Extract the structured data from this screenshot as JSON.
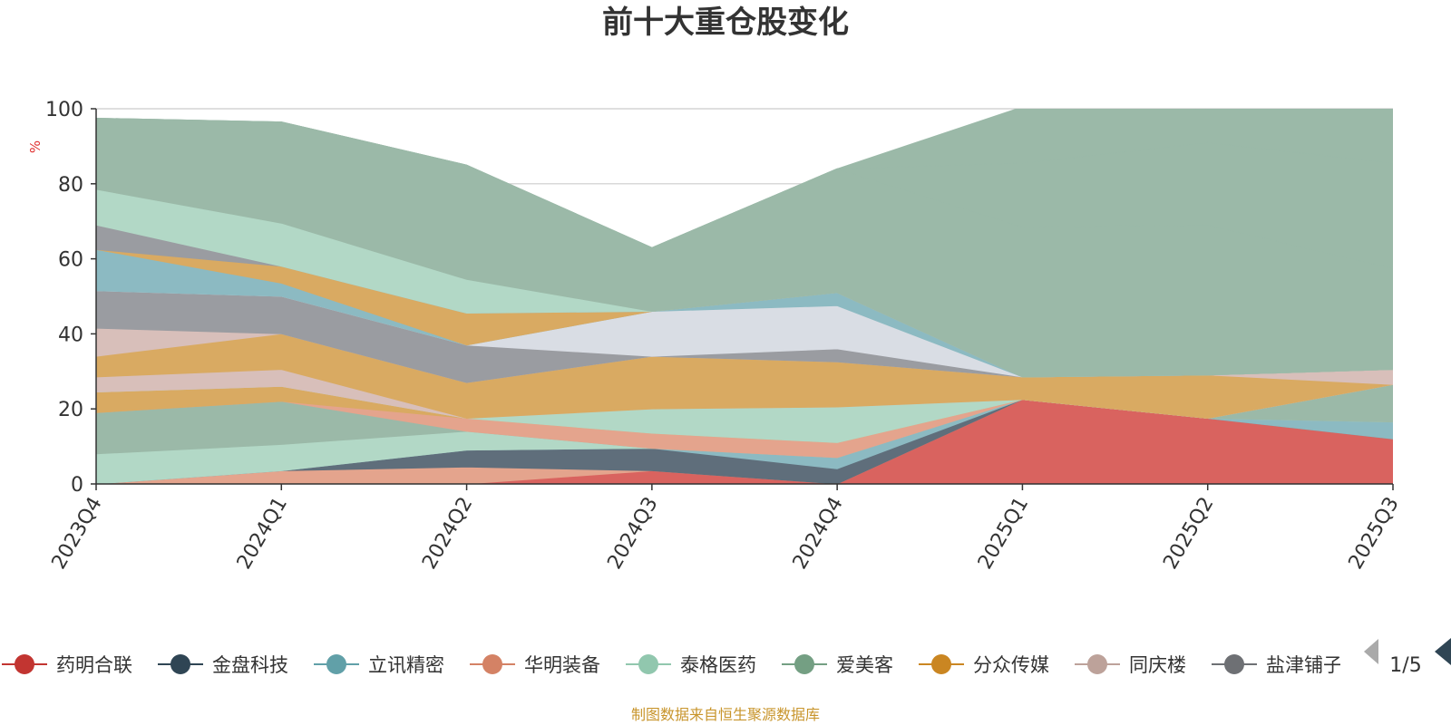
{
  "chart_data": {
    "type": "area",
    "stacked": true,
    "title": "前十大重仓股变化",
    "ylabel": "%",
    "ylim": [
      0,
      100
    ],
    "yticks": [
      0,
      20,
      40,
      60,
      80,
      100
    ],
    "grid": true,
    "legend_position": "bottom",
    "categories": [
      "2023Q4",
      "2024Q1",
      "2024Q2",
      "2024Q3",
      "2024Q4",
      "2025Q1",
      "2025Q2",
      "2025Q3"
    ],
    "series": [
      {
        "color": "#d9635f",
        "values": [
          0,
          0,
          0,
          3.5,
          0,
          22.5,
          17.5,
          12
        ]
      },
      {
        "color": "#e4a48d",
        "values": [
          0,
          3.5,
          4.5,
          0,
          0,
          0,
          0,
          0
        ]
      },
      {
        "color": "#5f6e7b",
        "values": [
          0,
          0,
          4.5,
          6,
          4,
          0,
          0,
          0
        ]
      },
      {
        "color": "#8cbac2",
        "values": [
          0,
          0,
          0,
          0,
          3,
          0,
          0,
          4.5
        ]
      },
      {
        "color": "#b2d8c6",
        "values": [
          8,
          7,
          5,
          0,
          0,
          0,
          0,
          0
        ]
      },
      {
        "color": "#9bb9a8",
        "values": [
          11,
          11.5,
          0,
          0,
          0,
          0,
          0,
          10
        ]
      },
      {
        "color": "#e4a48d",
        "values": [
          0,
          0,
          3.5,
          4,
          4,
          0,
          0,
          0
        ]
      },
      {
        "color": "#d9aa62",
        "values": [
          5.5,
          4,
          0,
          0,
          0,
          0,
          0,
          0
        ]
      },
      {
        "color": "#b2d8c6",
        "values": [
          0,
          0,
          0,
          6.5,
          9.5,
          0,
          0,
          0
        ]
      },
      {
        "color": "#d8bfba",
        "values": [
          4,
          4.5,
          0,
          0,
          0,
          0,
          0,
          0
        ]
      },
      {
        "color": "#d9aa62",
        "values": [
          5.5,
          9.5,
          9.5,
          14,
          12,
          6,
          11.5,
          0
        ]
      },
      {
        "color": "#d8bfba",
        "values": [
          7.5,
          0,
          0,
          0,
          0,
          0,
          0,
          4
        ]
      },
      {
        "color": "#9a9ca1",
        "values": [
          10,
          10,
          10,
          0,
          3.5,
          0,
          0,
          0
        ]
      },
      {
        "color": "#d9dde4",
        "values": [
          0,
          0,
          0,
          12,
          11.5,
          0,
          0,
          0
        ]
      },
      {
        "color": "#8cbac2",
        "values": [
          11,
          3.5,
          0,
          0,
          3.5,
          0,
          0,
          0
        ]
      },
      {
        "color": "#d9aa62",
        "values": [
          0,
          4.5,
          8.5,
          0,
          0,
          0,
          0,
          0
        ]
      },
      {
        "color": "#9a9ca1",
        "values": [
          6.5,
          0,
          0,
          0,
          0,
          0,
          0,
          0
        ]
      },
      {
        "color": "#b2d8c6",
        "values": [
          9.5,
          11.5,
          9,
          0,
          0,
          0,
          0,
          0
        ]
      },
      {
        "color": "#9bb9a8",
        "values": [
          19,
          27,
          30.5,
          17,
          33,
          40,
          40,
          27
        ]
      },
      {
        "color": "#9bb9a8",
        "values": [
          0,
          0,
          0,
          0,
          0,
          17,
          22,
          28
        ]
      },
      {
        "color": "#9bb9a8",
        "values": [
          0,
          0,
          0,
          0,
          0,
          15,
          9,
          14.5
        ]
      }
    ]
  },
  "legend": {
    "items": [
      {
        "label": "药明合联",
        "color": "#c23531"
      },
      {
        "label": "金盘科技",
        "color": "#2f4554"
      },
      {
        "label": "立讯精密",
        "color": "#61a0a8"
      },
      {
        "label": "华明装备",
        "color": "#d48265"
      },
      {
        "label": "泰格医药",
        "color": "#91c7ae"
      },
      {
        "label": "爱美客",
        "color": "#749f83"
      },
      {
        "label": "分众传媒",
        "color": "#ca8622"
      },
      {
        "label": "同庆楼",
        "color": "#bda29a"
      },
      {
        "label": "盐津铺子",
        "color": "#6e7074"
      }
    ],
    "page": "1/5"
  },
  "footer": {
    "source": "制图数据来自恒生聚源数据库"
  }
}
